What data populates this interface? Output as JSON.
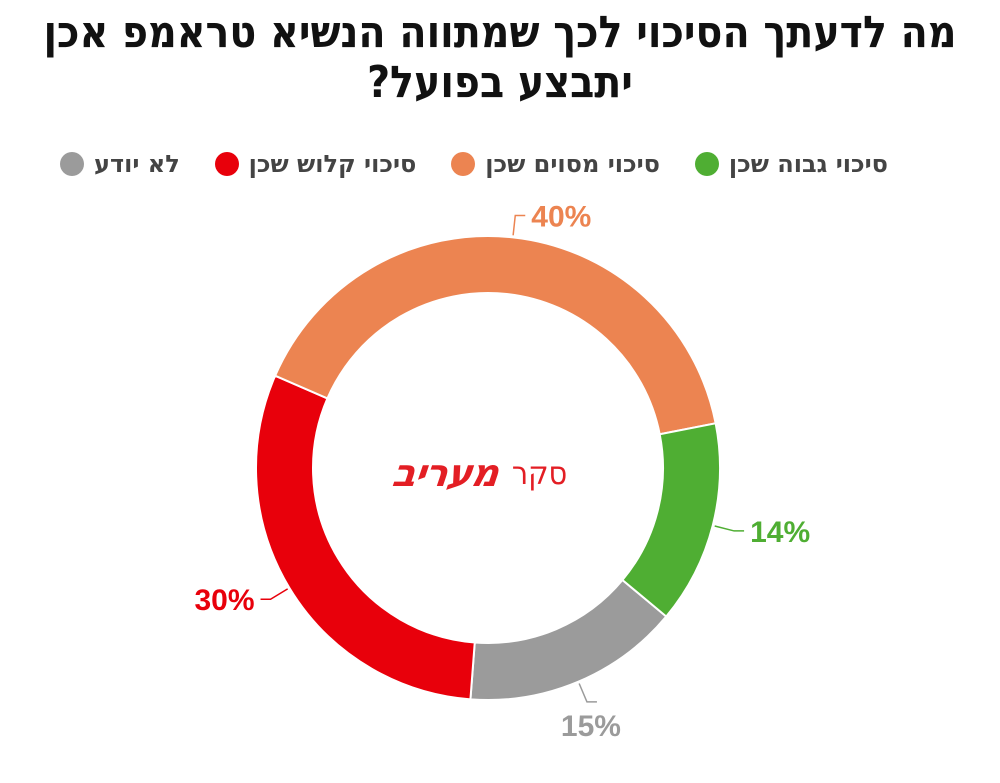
{
  "title": "מה לדעתך הסיכוי לכך שמתווה הנשיא טראמפ אכן יתבצע בפועל?",
  "center_label": {
    "prefix": "סקר",
    "brand": "מעריב"
  },
  "chart_data": {
    "type": "pie",
    "title": "מה לדעתך הסיכוי לכך שמתווה הנשיא טראמפ אכן יתבצע בפועל?",
    "donut": true,
    "legend_position": "top",
    "categories": [
      "לא יודע",
      "סיכוי קלוש שכן",
      "סיכוי מסוים שכן",
      "סיכוי גבוה שכן"
    ],
    "values": [
      15,
      30,
      40,
      14
    ],
    "labels": [
      "15%",
      "30%",
      "40%",
      "14%"
    ],
    "colors": [
      "#9b9b9b",
      "#e8000b",
      "#ec8451",
      "#4fae33"
    ],
    "label_colors": [
      "#9b9b9b",
      "#e8000b",
      "#ec8451",
      "#4fae33"
    ]
  }
}
